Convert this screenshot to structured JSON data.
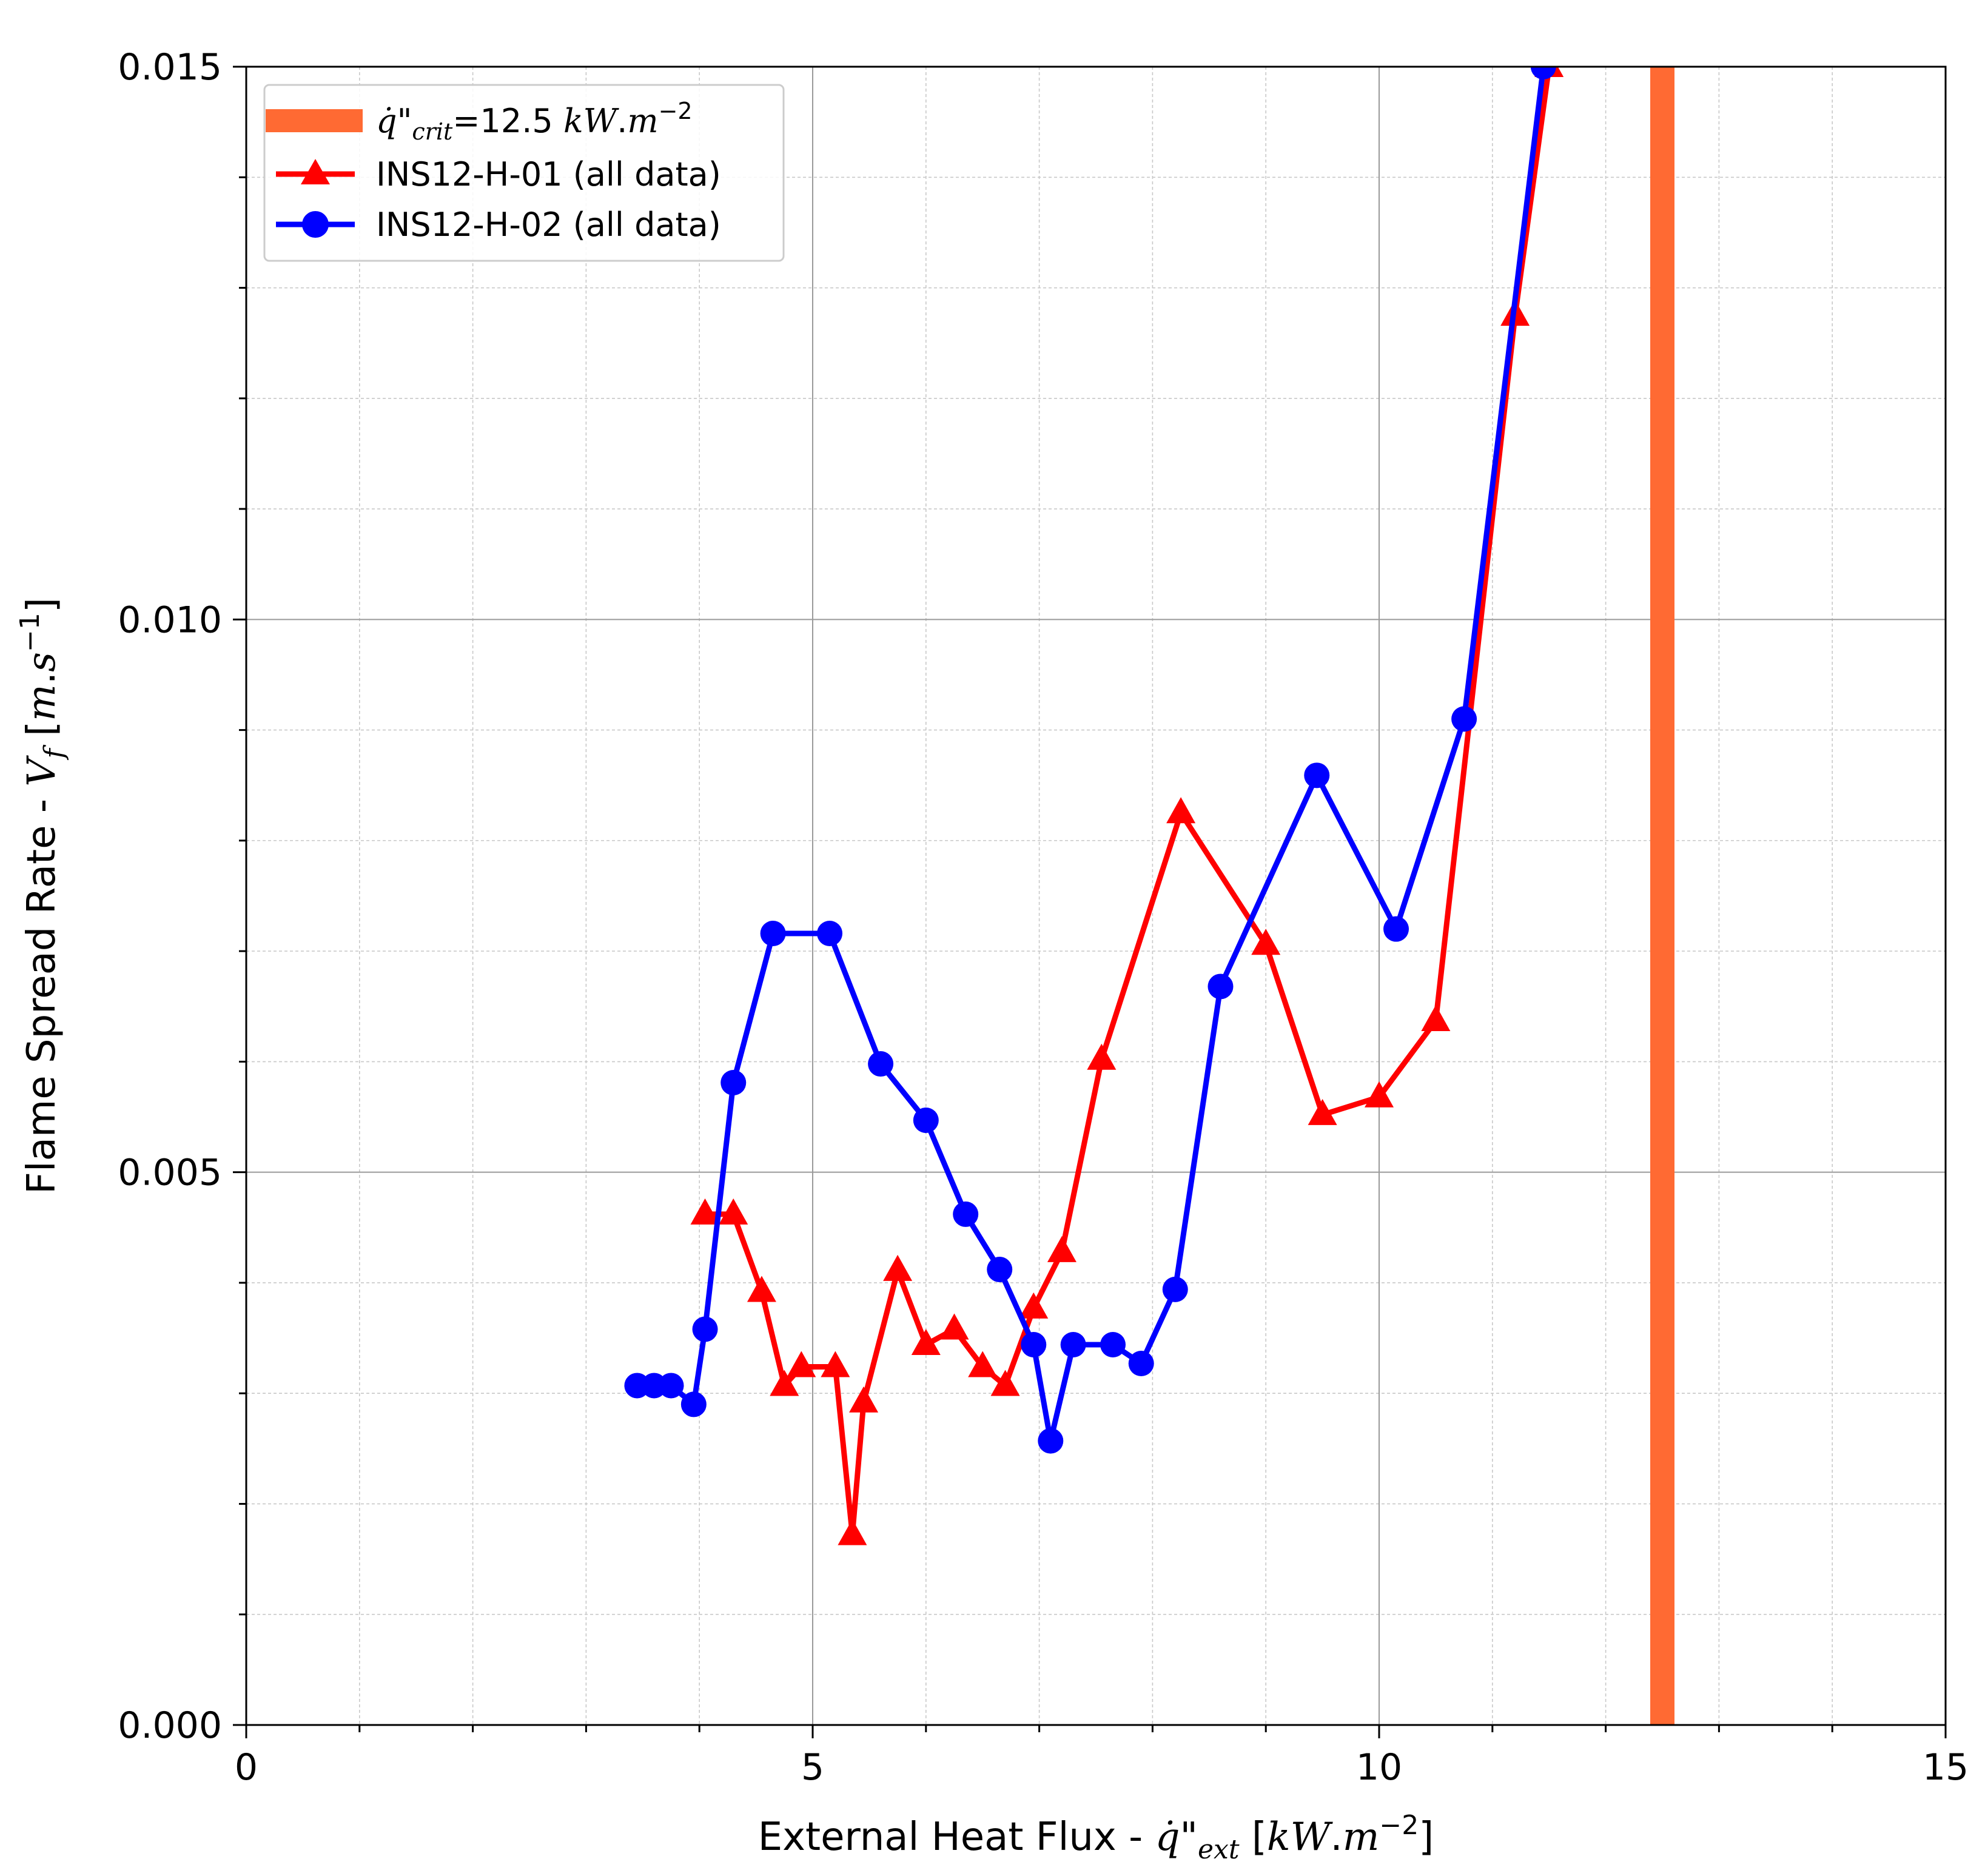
{
  "chart_data": {
    "type": "line",
    "title": "",
    "xlabel": "External Heat Flux - q̇\"ext [kW.m−2]",
    "ylabel": "Flame Spread Rate - Vf [m.s−1]",
    "xlim": [
      0,
      15
    ],
    "ylim": [
      0.0,
      0.015
    ],
    "x_ticks": [
      "0",
      "5",
      "10",
      "15"
    ],
    "y_ticks": [
      "0.000",
      "0.005",
      "0.010",
      "0.015"
    ],
    "grid": true,
    "minor_grid": true,
    "legend_position": "top-left",
    "critical_line": {
      "name": "q̇\"crit=12.5 kW.m−2",
      "x": 12.5,
      "color": "#ff6a33"
    },
    "series": [
      {
        "name": "INS12-H-01 (all data)",
        "color": "#ff0000",
        "marker": "triangle",
        "x": [
          4.05,
          4.3,
          4.55,
          4.75,
          4.9,
          5.2,
          5.35,
          5.45,
          5.75,
          6.0,
          6.25,
          6.5,
          6.7,
          6.95,
          7.2,
          7.55,
          8.25,
          9.0,
          9.5,
          10.0,
          10.5,
          11.2,
          11.5
        ],
        "y": [
          0.00462,
          0.00462,
          0.00392,
          0.00307,
          0.00324,
          0.00324,
          0.00172,
          0.00292,
          0.00411,
          0.00344,
          0.00358,
          0.00324,
          0.00307,
          0.00377,
          0.00428,
          0.00602,
          0.00825,
          0.00706,
          0.00552,
          0.00568,
          0.00637,
          0.01275,
          0.015
        ]
      },
      {
        "name": "INS12-H-02 (all data)",
        "color": "#0000ff",
        "marker": "circle",
        "x": [
          3.45,
          3.6,
          3.75,
          3.95,
          4.05,
          4.3,
          4.65,
          5.15,
          5.6,
          6.0,
          6.35,
          6.65,
          6.95,
          7.1,
          7.3,
          7.65,
          7.9,
          8.2,
          8.6,
          9.45,
          10.15,
          10.75,
          11.45
        ],
        "y": [
          0.00307,
          0.00307,
          0.00307,
          0.0029,
          0.00358,
          0.00581,
          0.00716,
          0.00716,
          0.00598,
          0.00547,
          0.00462,
          0.00412,
          0.00344,
          0.00257,
          0.00344,
          0.00344,
          0.00327,
          0.00394,
          0.00668,
          0.00859,
          0.0072,
          0.0091,
          0.015
        ]
      }
    ]
  }
}
